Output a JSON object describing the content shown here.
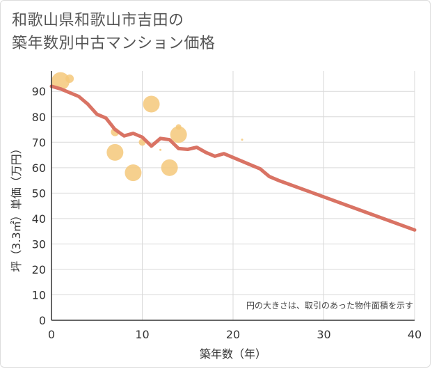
{
  "title_lines": [
    "和歌山県和歌山市吉田の",
    "築年数別中古マンション価格"
  ],
  "chart_data": {
    "type": "scatter",
    "title": "和歌山県和歌山市吉田の築年数別中古マンション価格",
    "xlabel": "築年数（年）",
    "ylabel": "坪（3.3㎡）単価（万円）",
    "xlim": [
      0,
      40
    ],
    "ylim": [
      0,
      98
    ],
    "xticks": [
      0,
      10,
      20,
      30,
      40
    ],
    "yticks": [
      0,
      10,
      20,
      30,
      40,
      50,
      60,
      70,
      80,
      90
    ],
    "grid": true,
    "note": "円の大きさは、取引のあった物件面積を示す",
    "colors": {
      "points": "#f5c87a",
      "trend": "#d97364",
      "grid": "#d9d9d9"
    },
    "points": [
      {
        "x": 1,
        "y": 94,
        "size": 13
      },
      {
        "x": 2,
        "y": 95,
        "size": 6
      },
      {
        "x": 7,
        "y": 74,
        "size": 6
      },
      {
        "x": 7,
        "y": 66,
        "size": 12
      },
      {
        "x": 9,
        "y": 58,
        "size": 12
      },
      {
        "x": 10,
        "y": 70,
        "size": 5
      },
      {
        "x": 11,
        "y": 85,
        "size": 12
      },
      {
        "x": 12,
        "y": 67,
        "size": 1.5
      },
      {
        "x": 13,
        "y": 60,
        "size": 12
      },
      {
        "x": 14,
        "y": 73,
        "size": 12
      },
      {
        "x": 14,
        "y": 76,
        "size": 4
      },
      {
        "x": 21,
        "y": 71,
        "size": 1.5
      }
    ],
    "trend": {
      "x": [
        0,
        1,
        2,
        3,
        4,
        5,
        6,
        7,
        8,
        9,
        10,
        11,
        12,
        13,
        14,
        15,
        16,
        17,
        18,
        19,
        20,
        21,
        22,
        23,
        24,
        25,
        30,
        35,
        40
      ],
      "y": [
        92,
        91,
        89.5,
        88,
        85,
        81,
        79.5,
        75,
        72.5,
        73.5,
        72,
        68.5,
        71.5,
        71,
        67.5,
        67.2,
        68,
        66,
        64.5,
        65.5,
        64,
        62.5,
        61,
        59.5,
        56.5,
        55,
        48.5,
        42,
        35.5
      ]
    }
  }
}
